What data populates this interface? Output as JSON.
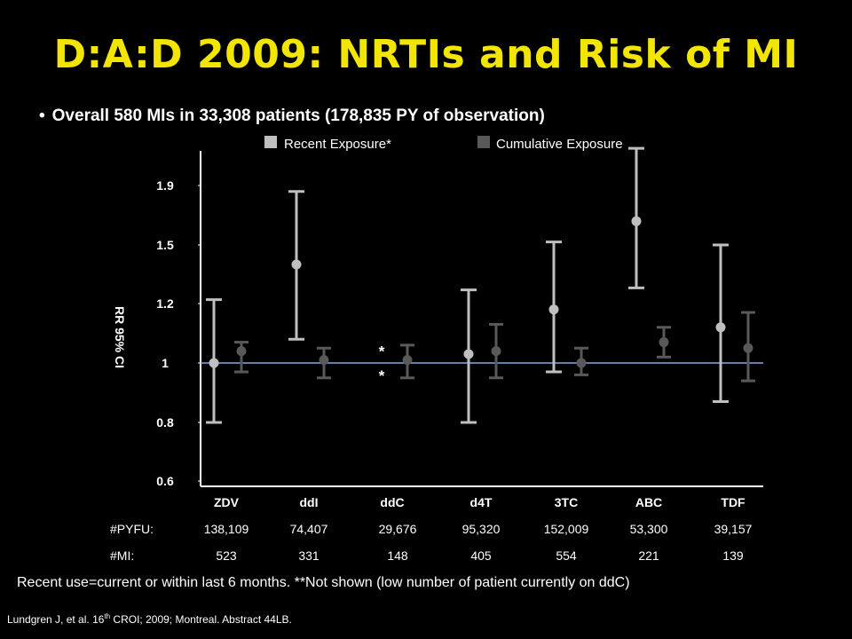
{
  "slide": {
    "title": "D:A:D 2009: NRTIs and Risk of MI",
    "bullet": "Overall 580 MIs  in 33,308 patients (178,835 PY of observation)",
    "note": "Recent use=current or within last 6 months.  **Not shown (low number of patient currently on ddC)",
    "citation_part1": "Lundgren J, et al. 16",
    "citation_sup": "th",
    "citation_part2": " CROI; 2009; Montreal. Abstract 44LB."
  },
  "chart_data": {
    "type": "scatter",
    "ylabel": "RR  95% CI",
    "y_ticks": [
      "0.6",
      "0.8",
      "1",
      "1.2",
      "1.5",
      "1.9"
    ],
    "reference_line": 1,
    "categories": [
      "ZDV",
      "ddI",
      "ddC",
      "d4T",
      "3TC",
      "ABC",
      "TDF"
    ],
    "series": [
      {
        "name": "Recent Exposure*",
        "color": "#bfbfbf",
        "values": [
          1.0,
          1.4,
          null,
          1.03,
          1.18,
          1.66,
          1.12
        ],
        "lower": [
          0.8,
          1.08,
          null,
          0.8,
          0.97,
          1.28,
          0.87
        ],
        "upper": [
          1.22,
          1.86,
          null,
          1.27,
          1.52,
          2.15,
          1.5
        ],
        "missing_marker": "*"
      },
      {
        "name": "Cumulative Exposure",
        "color": "#595959",
        "values": [
          1.04,
          1.01,
          1.01,
          1.04,
          1.0,
          1.07,
          1.05
        ],
        "lower": [
          0.97,
          0.95,
          0.95,
          0.95,
          0.96,
          1.02,
          0.94
        ],
        "upper": [
          1.07,
          1.05,
          1.06,
          1.13,
          1.05,
          1.12,
          1.17
        ]
      }
    ],
    "table": {
      "rows": [
        {
          "label": "#PYFU:",
          "values": [
            "138,109",
            "74,407",
            "29,676",
            "95,320",
            "152,009",
            "53,300",
            "39,157"
          ]
        },
        {
          "label": "#MI:",
          "values": [
            "523",
            "331",
            "148",
            "405",
            "554",
            "221",
            "139"
          ]
        }
      ]
    },
    "colors": {
      "reference_line": "#8ea9db",
      "axis": "#ffffff"
    }
  }
}
